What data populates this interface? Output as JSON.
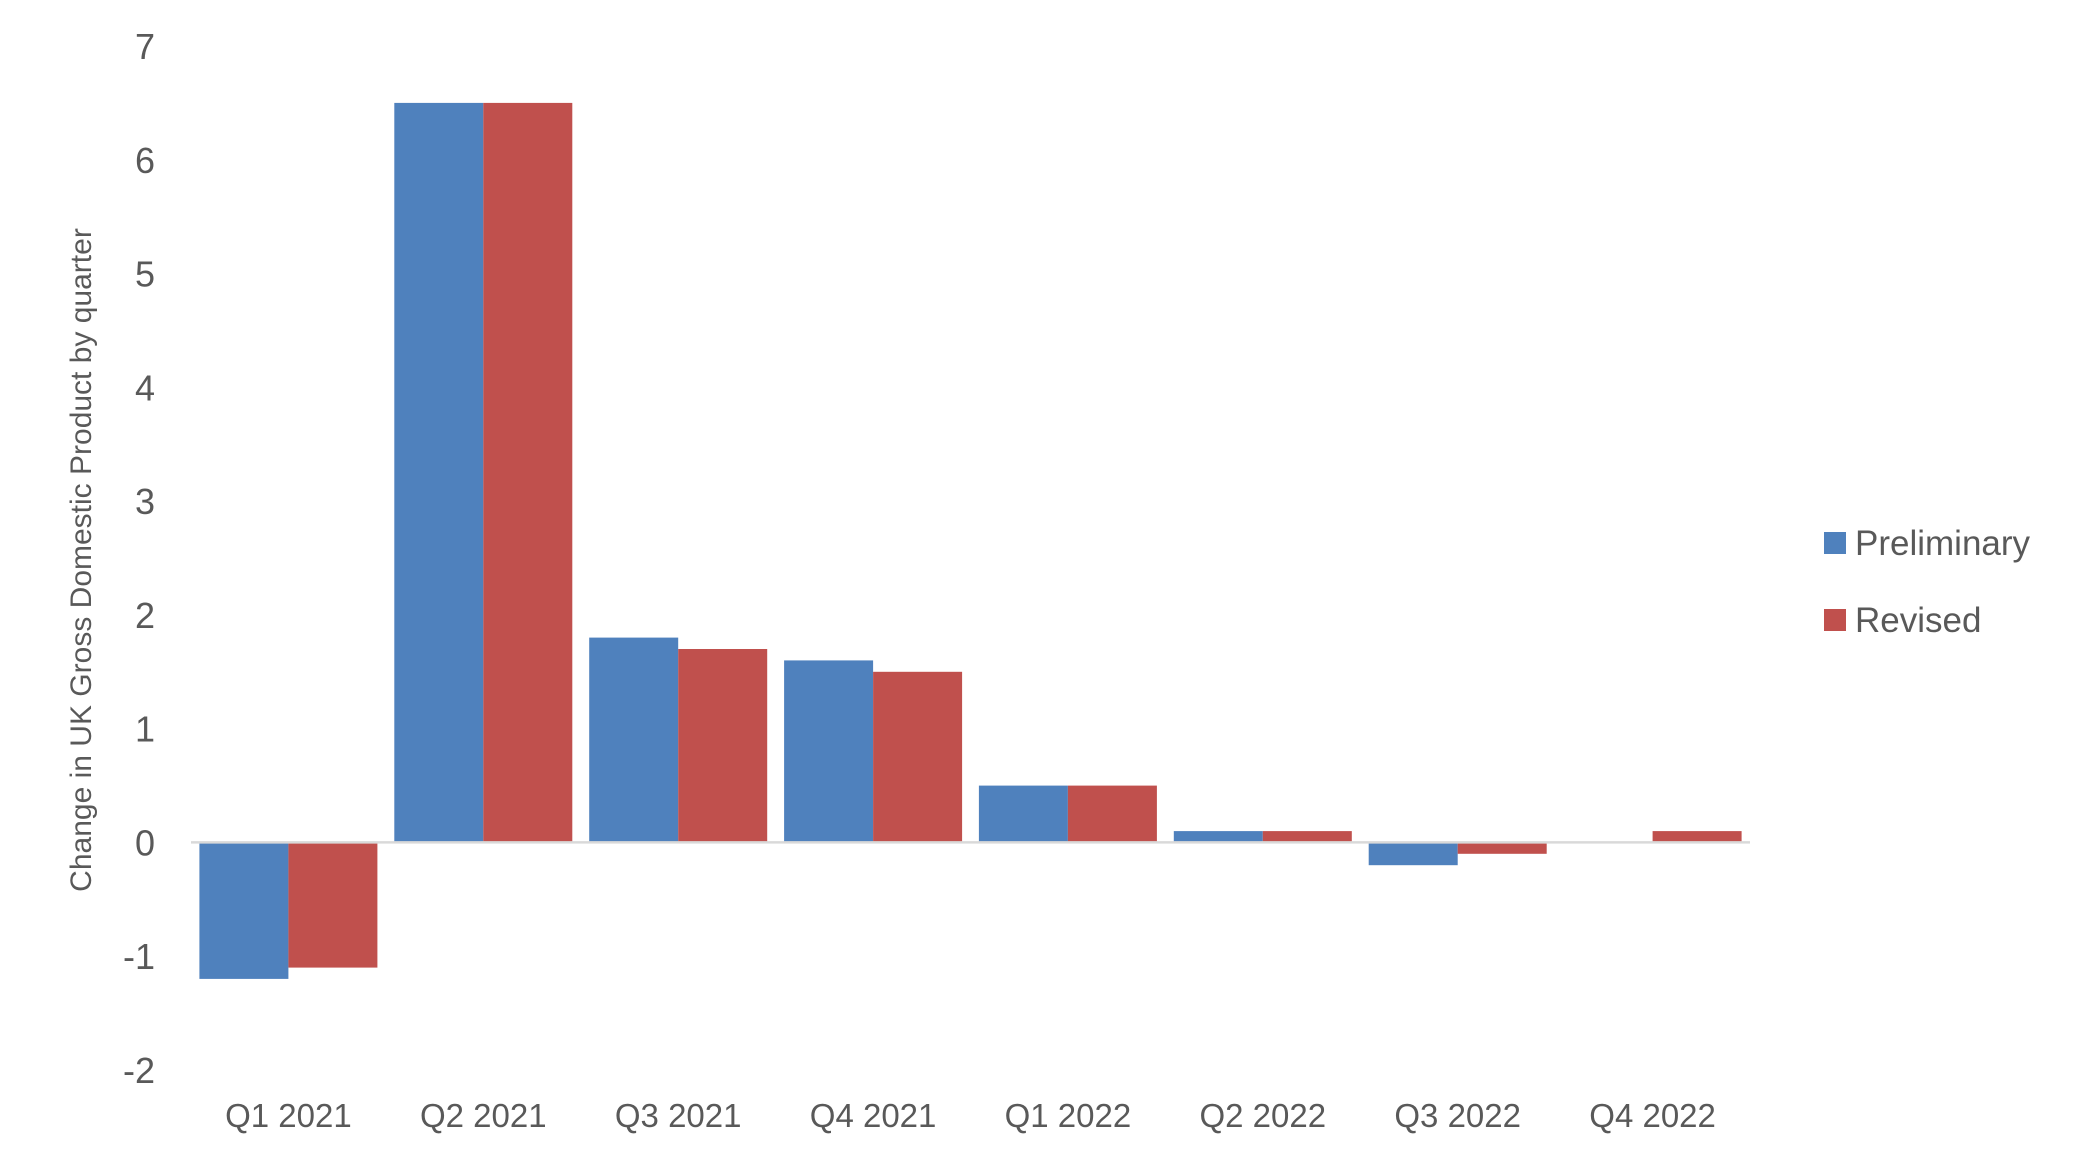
{
  "chart_data": {
    "type": "bar",
    "categories": [
      "Q1 2021",
      "Q2 2021",
      "Q3 2021",
      "Q4 2021",
      "Q1 2022",
      "Q2 2022",
      "Q3 2022",
      "Q4 2022"
    ],
    "series": [
      {
        "name": "Preliminary",
        "color": "#4f81bd",
        "values": [
          -1.2,
          6.5,
          1.8,
          1.6,
          0.5,
          0.1,
          -0.2,
          0.0
        ]
      },
      {
        "name": "Revised",
        "color": "#c0504d",
        "values": [
          -1.1,
          6.5,
          1.7,
          1.5,
          0.5,
          0.1,
          -0.1,
          0.1
        ]
      }
    ],
    "title": "",
    "xlabel": "",
    "ylabel": "Change in UK Gross Domestic Product by quarter",
    "ylim": [
      -2,
      7
    ],
    "yticks": [
      "-2",
      "-1",
      "0",
      "1",
      "2",
      "3",
      "4",
      "5",
      "6",
      "7"
    ],
    "grid": false,
    "legend_position": "right"
  }
}
